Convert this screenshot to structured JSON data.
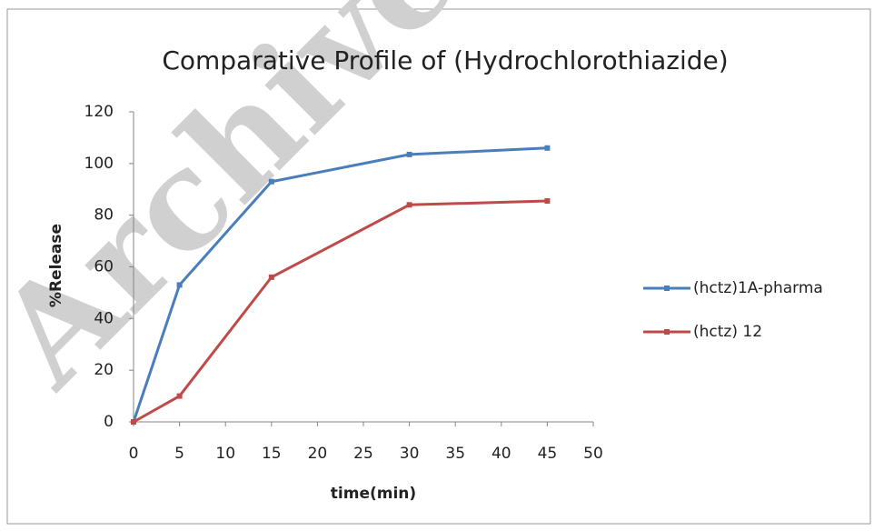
{
  "chart_data": {
    "type": "line",
    "title": "Comparative Profile of (Hydrochlorothiazide)",
    "watermark": "Archive",
    "x_label": "time(min)",
    "y_label": "%Release",
    "x": [
      0,
      5,
      15,
      30,
      45
    ],
    "series": [
      {
        "name": "(hctz)1A-pharma",
        "color": "#4a7ebb",
        "values": [
          0,
          53,
          93,
          103.5,
          106
        ]
      },
      {
        "name": "(hctz) 12",
        "color": "#be4b48",
        "values": [
          0,
          10,
          56,
          84,
          85.5
        ]
      }
    ],
    "xlim": [
      0,
      50
    ],
    "xticks": [
      0,
      5,
      10,
      15,
      20,
      25,
      30,
      35,
      40,
      45,
      50
    ],
    "ylim": [
      0,
      120
    ],
    "yticks": [
      0,
      20,
      40,
      60,
      80,
      100,
      120
    ],
    "grid": false,
    "legend": "right"
  }
}
